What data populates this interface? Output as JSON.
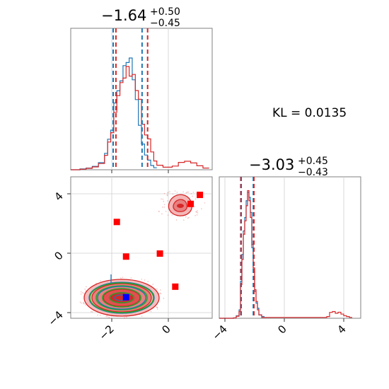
{
  "chart_data": [
    {
      "type": "histogram",
      "panel": "top-left",
      "title": {
        "median": "−1.64",
        "plus": "+0.50",
        "minus": "−0.45"
      },
      "xlim": [
        -3.5,
        1.1
      ],
      "quantile_lines": {
        "blue": [
          -2.12,
          -1.18
        ],
        "red": [
          -2.03,
          -1.0
        ]
      },
      "series": [
        {
          "color": "#1f77b4",
          "x": [
            -3.5,
            -3.2,
            -3.0,
            -2.8,
            -2.6,
            -2.4,
            -2.3,
            -2.2,
            -2.1,
            -2.0,
            -1.9,
            -1.8,
            -1.7,
            -1.6,
            -1.5,
            -1.4,
            -1.3,
            -1.2,
            -1.1,
            -1.0,
            -0.9,
            -0.8,
            -0.7
          ],
          "y": [
            0,
            0.3,
            0.6,
            1.2,
            2.5,
            5.8,
            10.8,
            14.0,
            23.6,
            27.9,
            31.4,
            36.8,
            37.9,
            39.5,
            31.8,
            24.8,
            15.7,
            9.1,
            5.2,
            3.4,
            1.5,
            0.7,
            0
          ]
        },
        {
          "color": "#d62728",
          "x": [
            -3.5,
            -3.2,
            -3.0,
            -2.8,
            -2.6,
            -2.4,
            -2.3,
            -2.2,
            -2.1,
            -2.0,
            -1.9,
            -1.8,
            -1.7,
            -1.6,
            -1.5,
            -1.4,
            -1.3,
            -1.2,
            -1.1,
            -1.0,
            -0.9,
            -0.8,
            -0.7,
            -0.5,
            -0.2,
            0.0,
            0.2,
            0.4,
            0.6,
            0.8,
            1.0
          ],
          "y": [
            0,
            0.2,
            0.5,
            1.0,
            2.2,
            5.1,
            9.8,
            13.1,
            20.3,
            26.2,
            30.8,
            32.4,
            36.5,
            33.1,
            33.7,
            28.0,
            24.9,
            16.1,
            12.3,
            10.9,
            6.3,
            3.1,
            1.6,
            0.9,
            1.3,
            2.6,
            3.0,
            2.4,
            1.4,
            0.6,
            0
          ]
        }
      ]
    },
    {
      "type": "contour",
      "panel": "bottom-left",
      "xlim": [
        -3.5,
        1.1
      ],
      "ylim": [
        -4.4,
        5.0
      ],
      "xticks": [
        "−2",
        "0"
      ],
      "yticks": [
        "−4",
        "0",
        "4"
      ],
      "red_square_markers": [
        [
          -2.0,
          2.0
        ],
        [
          -1.7,
          -0.3
        ],
        [
          -0.6,
          -0.1
        ],
        [
          -0.1,
          -2.3
        ],
        [
          0.4,
          3.2
        ],
        [
          0.7,
          3.8
        ]
      ],
      "blue_square_marker": [
        -1.7,
        -3.0
      ],
      "blobs": [
        {
          "center": [
            -1.9,
            -3.0
          ],
          "colors": [
            "#d62728",
            "#1f77b4",
            "#2ca02c"
          ]
        },
        {
          "center": [
            0.45,
            3.2
          ],
          "colors": [
            "#d62728"
          ]
        }
      ]
    },
    {
      "type": "histogram",
      "panel": "bottom-right",
      "title": {
        "median": "−3.03",
        "plus": "+0.45",
        "minus": "−0.43"
      },
      "xlim": [
        -5.0,
        5.0
      ],
      "xticks": [
        "−4",
        "0",
        "4"
      ],
      "quantile_lines": {
        "blue": [
          -3.48,
          -2.59
        ],
        "red": [
          -3.45,
          -2.55
        ]
      },
      "series": [
        {
          "color": "#1f77b4",
          "x": [
            -5.0,
            -4.0,
            -3.8,
            -3.6,
            -3.5,
            -3.4,
            -3.3,
            -3.2,
            -3.1,
            -3.0,
            -2.9,
            -2.8,
            -2.7,
            -2.6,
            -2.5,
            -2.4,
            -2.3,
            -2.2,
            -2.0,
            -1.8
          ],
          "y": [
            0,
            0.2,
            1.5,
            5.0,
            22.0,
            38.0,
            52.0,
            60.0,
            70.0,
            75.0,
            72.0,
            63.0,
            42.0,
            28.0,
            16.0,
            9.0,
            6.0,
            2.0,
            1.0,
            0
          ]
        },
        {
          "color": "#d62728",
          "x": [
            -5.0,
            -4.0,
            -3.8,
            -3.6,
            -3.5,
            -3.4,
            -3.3,
            -3.2,
            -3.1,
            -3.0,
            -2.9,
            -2.8,
            -2.7,
            -2.6,
            -2.5,
            -2.4,
            -2.3,
            -2.2,
            -2.0,
            2.6,
            2.8,
            3.0,
            3.2,
            3.4,
            3.6,
            3.8,
            4.0,
            4.2,
            4.4
          ],
          "y": [
            0,
            0.2,
            1.2,
            4.0,
            20.0,
            35.0,
            50.0,
            58.0,
            67.0,
            76.0,
            70.0,
            60.0,
            44.0,
            30.0,
            17.0,
            10.0,
            5.0,
            2.0,
            0.5,
            1.0,
            3.5,
            4.0,
            3.0,
            3.6,
            2.5,
            1.5,
            1.0,
            0.5,
            0
          ]
        }
      ]
    }
  ],
  "annotation": {
    "kl_text": "KL = 0.0135"
  }
}
